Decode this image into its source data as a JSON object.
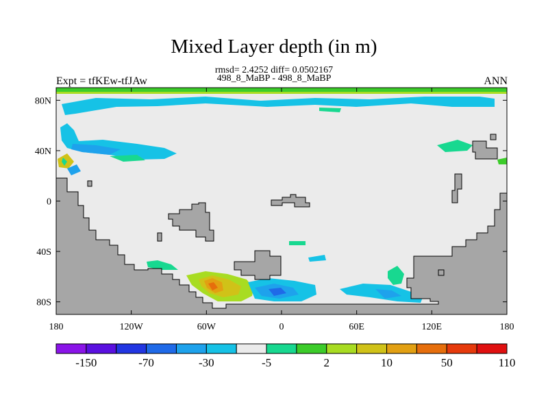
{
  "header": {
    "title": "Mixed Layer depth (in m)",
    "stats": "rmsd= 2.4252 diff= 0.0502167",
    "subtitle": "498_8_MaBP - 498_8_MaBP",
    "left_label": "Expt = tfKEw-tfJAw",
    "right_label": "ANN"
  },
  "chart_data": {
    "type": "heatmap",
    "title": "Mixed Layer depth (in m)",
    "x_tick_labels": [
      "180",
      "120W",
      "60W",
      "0",
      "60E",
      "120E",
      "180"
    ],
    "y_tick_labels": [
      "80N",
      "40N",
      "0",
      "40S",
      "80S"
    ],
    "xlim": [
      -180,
      180
    ],
    "ylim": [
      -90,
      90
    ],
    "colorbar": {
      "tick_labels": [
        "-150",
        "-70",
        "-30",
        "-5",
        "2",
        "10",
        "50",
        "110"
      ],
      "colors": [
        "#8a14e8",
        "#5a10e0",
        "#2236e2",
        "#1f6ae8",
        "#1ea2ec",
        "#16c2e6",
        "#ebebeb",
        "#18d890",
        "#3ccc2a",
        "#a8dc22",
        "#d0c218",
        "#e2a012",
        "#e66e0c",
        "#e63a0c",
        "#e01010"
      ]
    },
    "colors": {
      "land": "#a6a6a6",
      "ocean_background": "#ebebeb",
      "coast_line": "#000000"
    }
  }
}
